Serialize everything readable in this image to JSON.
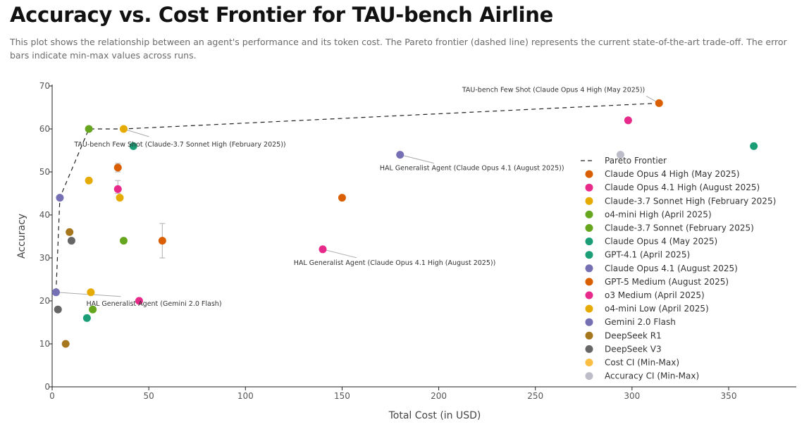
{
  "page": {
    "title": "Accuracy vs. Cost Frontier for TAU-bench Airline",
    "subtitle": "This plot shows the relationship between an agent's performance and its token cost. The Pareto frontier (dashed line) represents the current state-of-the-art trade-off. The error bars indicate min-max values across runs."
  },
  "chart_data": {
    "type": "scatter",
    "xlabel": "Total Cost (in USD)",
    "ylabel": "Accuracy",
    "xlim": [
      0,
      385
    ],
    "ylim": [
      0,
      70
    ],
    "xticks": [
      0,
      50,
      100,
      150,
      200,
      250,
      300,
      350
    ],
    "yticks": [
      0,
      10,
      20,
      30,
      40,
      50,
      60,
      70
    ],
    "grid": false,
    "legend_position": "right",
    "pareto": {
      "name": "Pareto Frontier",
      "points": [
        [
          2,
          22
        ],
        [
          4,
          44
        ],
        [
          19,
          60
        ],
        [
          37,
          60
        ],
        [
          314,
          66
        ]
      ]
    },
    "series": [
      {
        "name": "Claude Opus 4 High (May 2025)",
        "color": "#d95f02",
        "points": [
          [
            314,
            66
          ]
        ]
      },
      {
        "name": "Claude Opus 4.1 High (August 2025)",
        "color": "#e7298a",
        "points": [
          [
            298,
            62
          ],
          [
            140,
            32
          ]
        ]
      },
      {
        "name": "Claude-3.7 Sonnet High (February 2025)",
        "color": "#e6ab02",
        "points": [
          [
            37,
            60
          ],
          [
            19,
            48
          ],
          [
            35,
            44
          ],
          [
            20,
            22
          ]
        ]
      },
      {
        "name": "o4-mini High (April 2025)",
        "color": "#66a61e",
        "points": [
          [
            37,
            34
          ]
        ]
      },
      {
        "name": "Claude-3.7 Sonnet (February 2025)",
        "color": "#66a61e",
        "points": [
          [
            19,
            60
          ],
          [
            21,
            18
          ]
        ]
      },
      {
        "name": "Claude Opus 4 (May 2025)",
        "color": "#1b9e77",
        "points": [
          [
            363,
            56
          ]
        ]
      },
      {
        "name": "GPT-4.1 (April 2025)",
        "color": "#1b9e77",
        "points": [
          [
            42,
            56
          ],
          [
            18,
            16
          ]
        ]
      },
      {
        "name": "Claude Opus 4.1 (August 2025)",
        "color": "#7570b3",
        "points": [
          [
            180,
            54
          ]
        ]
      },
      {
        "name": "GPT-5 Medium (August 2025)",
        "color": "#d95f02",
        "points": [
          [
            34,
            51
          ],
          [
            150,
            44
          ],
          [
            57,
            34
          ]
        ]
      },
      {
        "name": "o3 Medium (April 2025)",
        "color": "#e7298a",
        "points": [
          [
            34,
            46
          ],
          [
            45,
            20
          ]
        ]
      },
      {
        "name": "o4-mini Low (April 2025)",
        "color": "#e6ab02",
        "points": []
      },
      {
        "name": "Gemini 2.0 Flash",
        "color": "#7570b3",
        "points": [
          [
            4,
            44
          ],
          [
            2,
            22
          ]
        ]
      },
      {
        "name": "DeepSeek R1",
        "color": "#a6761d",
        "points": [
          [
            9,
            36
          ],
          [
            7,
            10
          ]
        ]
      },
      {
        "name": "DeepSeek V3",
        "color": "#666666",
        "points": [
          [
            10,
            34
          ],
          [
            3,
            18
          ]
        ]
      },
      {
        "name": "Cost CI (Min-Max)",
        "color": "#fbbe45",
        "points": []
      },
      {
        "name": "Accuracy CI (Min-Max)",
        "color": "#bdbdc9",
        "points": [
          [
            294,
            54
          ]
        ]
      }
    ],
    "error_bars": [
      {
        "x": 34,
        "ymin": 50,
        "ymax": 52
      },
      {
        "x": 34,
        "ymin": 45,
        "ymax": 48
      },
      {
        "x": 57,
        "ymin": 30,
        "ymax": 38
      }
    ],
    "annotations": [
      {
        "text": "TAU-bench Few Shot (Claude Opus 4 High (May 2025))",
        "x": 314,
        "y": 66,
        "pos": "above-left"
      },
      {
        "text": "TAU-bench Few Shot (Claude-3.7 Sonnet High (February 2025))",
        "x": 37,
        "y": 60,
        "pos": "below-right"
      },
      {
        "text": "HAL Generalist Agent (Claude Opus 4.1 (August 2025))",
        "x": 180,
        "y": 54,
        "pos": "below-right"
      },
      {
        "text": "HAL Generalist Agent (Claude Opus 4.1 High (August 2025))",
        "x": 140,
        "y": 32,
        "pos": "below-right"
      },
      {
        "text": "HAL Generalist Agent (Gemini 2.0 Flash)",
        "x": 2,
        "y": 22,
        "pos": "below-right"
      }
    ]
  }
}
